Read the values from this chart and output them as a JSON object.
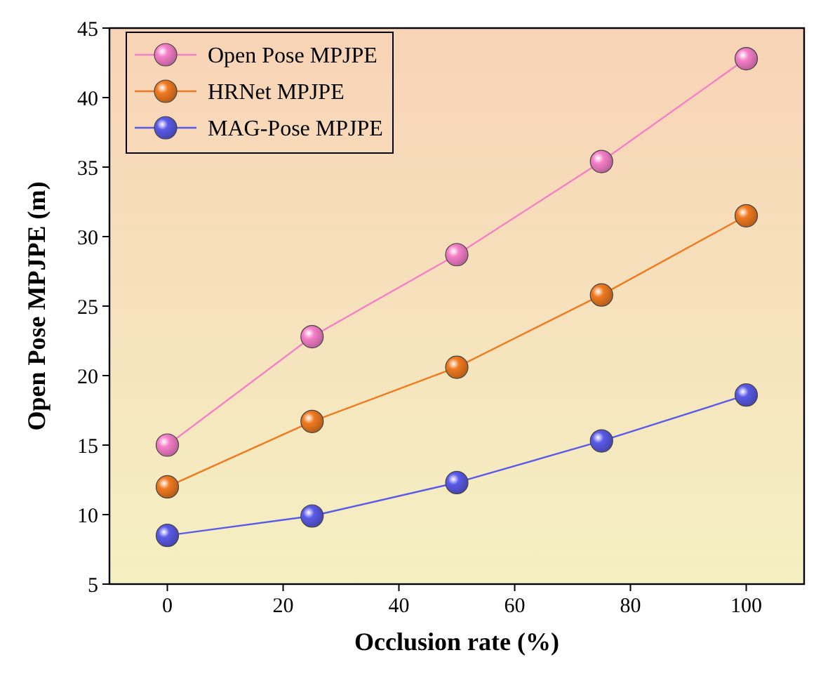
{
  "chart_data": {
    "type": "line",
    "xlabel": "Occlusion rate (%)",
    "ylabel": "Open Pose MPJPE (m)",
    "x": [
      0,
      25,
      50,
      75,
      100
    ],
    "series": [
      {
        "name": "Open Pose MPJPE",
        "color": "#f57fc8",
        "values": [
          15,
          22.8,
          28.7,
          35.4,
          42.8
        ]
      },
      {
        "name": "HRNet MPJPE",
        "color": "#f07a20",
        "values": [
          12,
          16.7,
          20.6,
          25.8,
          31.5
        ]
      },
      {
        "name": "MAG-Pose MPJPE",
        "color": "#5a5ae8",
        "values": [
          8.5,
          9.9,
          12.3,
          15.3,
          18.6
        ]
      }
    ],
    "xlim": [
      -10,
      110
    ],
    "xticks": [
      0,
      20,
      40,
      60,
      80,
      100
    ],
    "ylim": [
      5,
      45
    ],
    "yticks": [
      5,
      10,
      15,
      20,
      25,
      30,
      35,
      40,
      45
    ],
    "marker": "circle",
    "line_style": "solid",
    "legend": "top left",
    "grid": false
  }
}
